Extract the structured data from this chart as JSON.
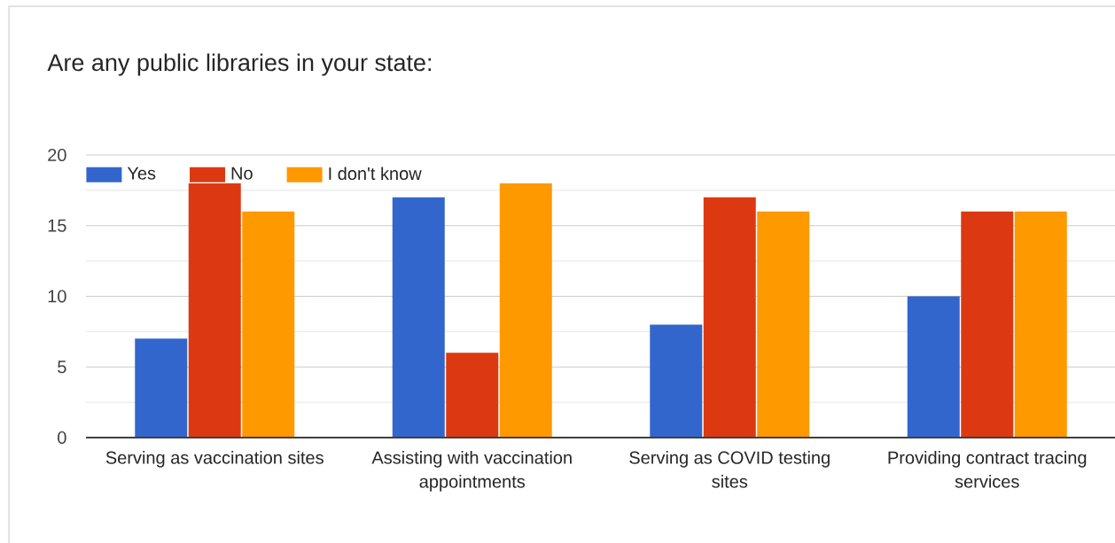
{
  "chart_data": {
    "type": "bar",
    "title": "Are any public libraries in your state:",
    "categories": [
      "Serving as vaccination sites",
      "Assisting with vaccination appointments",
      "Serving as COVID testing sites",
      "Providing contract tracing services"
    ],
    "series": [
      {
        "name": "Yes",
        "color": "#3366cc",
        "values": [
          7,
          17,
          8,
          10
        ]
      },
      {
        "name": "No",
        "color": "#dc3912",
        "values": [
          18,
          6,
          17,
          16
        ]
      },
      {
        "name": "I don't know",
        "color": "#ff9900",
        "values": [
          16,
          18,
          16,
          16
        ]
      }
    ],
    "ylim": [
      0,
      20
    ],
    "yticks": [
      0,
      {
        "value": 2.5,
        "label": null
      },
      5,
      {
        "value": 7.5,
        "label": null
      },
      10,
      {
        "value": 12.5,
        "label": null
      },
      15,
      {
        "value": 17.5,
        "label": null
      },
      20
    ],
    "grid": "y",
    "legend": "top left"
  }
}
